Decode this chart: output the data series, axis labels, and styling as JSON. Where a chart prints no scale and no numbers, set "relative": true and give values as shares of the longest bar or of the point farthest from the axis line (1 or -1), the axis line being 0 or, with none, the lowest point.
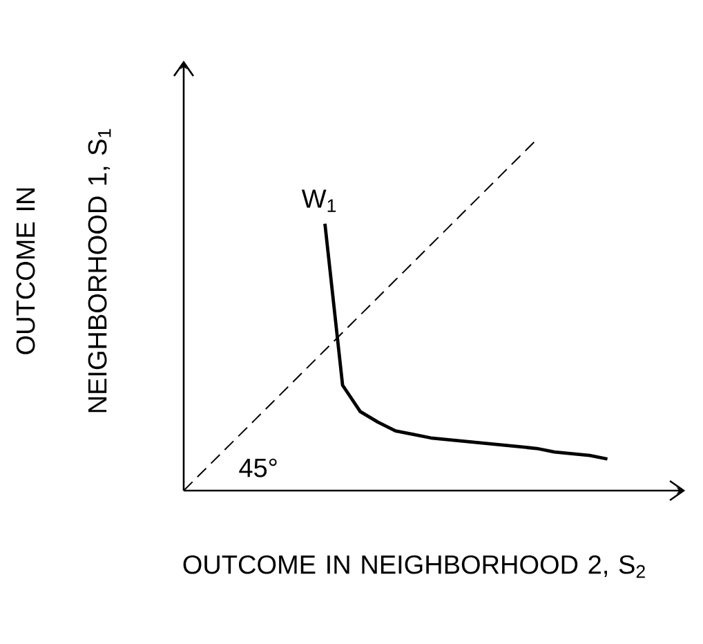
{
  "chart_data": {
    "type": "line",
    "relative": true,
    "xlabel": "OUTCOME IN NEIGHBORHOOD 2, S$_{2}$",
    "ylabel": "OUTCOME IN NEIGHBORHOOD 1, S$_{1}$",
    "annotations": [
      "45°"
    ],
    "categories": [
      null,
      null,
      null,
      null,
      null,
      null,
      null,
      null,
      null,
      null,
      null,
      null,
      null,
      null,
      null,
      null,
      null,
      null,
      null,
      null,
      null,
      null,
      null,
      null,
      null
    ],
    "series": [
      {
        "name": "W$_{1}$",
        "color": "#000000",
        "line_style": "solid",
        "values": [
          null,
          null,
          null,
          null,
          null,
          null,
          null,
          null,
          0.76,
          0.3,
          0.225,
          0.195,
          0.17,
          0.16,
          0.15,
          0.145,
          0.14,
          0.135,
          0.13,
          0.125,
          0.12,
          0.11,
          0.105,
          0.1,
          0.09
        ]
      },
      {
        "color": "#000000",
        "line_style": "dashed",
        "values": [
          0,
          0.05,
          0.1,
          0.15,
          0.2,
          0.25,
          0.3,
          0.35,
          0.4,
          0.45,
          0.5,
          0.55,
          0.6,
          0.65,
          0.7,
          0.75,
          0.8,
          0.85,
          0.9,
          0.95,
          1.0,
          null,
          null,
          null,
          null
        ]
      }
    ]
  }
}
